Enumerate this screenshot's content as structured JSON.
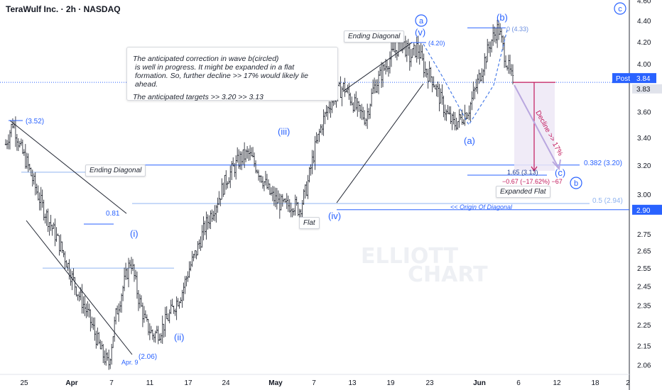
{
  "header": {
    "title": "TeraWulf Inc. · 2h · NASDAQ"
  },
  "note": {
    "line1": "The anticipated correction in wave b(circled)",
    "line2": "is well in progress. It might be expanded in a flat",
    "line3": "formation. So, further decline >> 17% would likely lie ahead.",
    "line4": "The anticipated targets >> 3.20  >>  3.13"
  },
  "watermark": {
    "line1": "ELLIOTT",
    "line2": "CHART"
  },
  "colors": {
    "up": "#26a69a",
    "down": "#ef5350",
    "bar": "#131722",
    "accent": "#2962ff",
    "fib": "#90b4f0",
    "decline": "#c2185b",
    "box": "#ede7f6"
  },
  "chart_data": {
    "type": "ohlc",
    "symbol": "TeraWulf Inc.",
    "interval": "2h",
    "exchange": "NASDAQ",
    "ylim": [
      2.0,
      4.6
    ],
    "y_scale": "log",
    "ytick_labels": [
      "4.60",
      "4.40",
      "4.20",
      "4.00",
      "3.80",
      "3.60",
      "3.40",
      "3.20",
      "3.00",
      "2.90",
      "2.75",
      "2.65",
      "2.55",
      "2.45",
      "2.35",
      "2.25",
      "2.15",
      "2.06"
    ],
    "ytick_values": [
      4.6,
      4.4,
      4.2,
      4.0,
      3.8,
      3.6,
      3.4,
      3.2,
      3.0,
      2.9,
      2.75,
      2.65,
      2.55,
      2.45,
      2.35,
      2.25,
      2.15,
      2.06
    ],
    "x_labels": [
      "25",
      "Apr",
      "7",
      "11",
      "17",
      "24",
      "May",
      "7",
      "13",
      "19",
      "23",
      "Jun",
      "6",
      "12",
      "18",
      "2"
    ],
    "price_tags": [
      {
        "label": "Post",
        "value": "3.84",
        "y": 3.84
      },
      {
        "label": "",
        "value": "3.83",
        "y": 3.83
      },
      {
        "label": "",
        "value": "2.90",
        "y": 2.9
      }
    ],
    "swing_points": [
      {
        "label": "(3.52)",
        "y": 3.52
      },
      {
        "label": "(2.06)",
        "y": 2.06
      },
      {
        "label": "Apr. 9",
        "y": 2.06
      },
      {
        "label": "(4.20)",
        "y": 4.2
      },
      {
        "label": "0 (4.33)",
        "y": 4.33
      },
      {
        "label": "1.65 (3.13)",
        "y": 3.13
      },
      {
        "label": "0.382 (3.20)",
        "y": 3.2
      },
      {
        "label": "0.5 (2.94)",
        "y": 2.94
      },
      {
        "label": "0.81",
        "y": 2.81
      },
      {
        "label": "−0.67 (−17.62%) −67",
        "y": 3.08
      }
    ],
    "wave_labels": [
      "(i)",
      "(ii)",
      "(iii)",
      "(iv)",
      "(v)",
      "(a)",
      "(b)",
      "(c)",
      "a",
      "b",
      "c"
    ],
    "annotations": [
      "Ending Diagonal",
      "Ending Diagonal",
      "Flat",
      "Expanded Flat",
      "<< Origin Of Diagonal",
      "Decline >> 17%"
    ],
    "close_path": [
      3.35,
      3.52,
      3.32,
      3.2,
      3.05,
      2.92,
      2.82,
      2.72,
      2.62,
      2.5,
      2.4,
      2.32,
      2.22,
      2.12,
      2.06,
      2.3,
      2.45,
      2.6,
      2.4,
      2.26,
      2.2,
      2.22,
      2.28,
      2.35,
      2.42,
      2.55,
      2.65,
      2.78,
      2.88,
      2.98,
      3.1,
      3.18,
      3.25,
      3.28,
      3.2,
      3.1,
      3.0,
      2.95,
      2.92,
      2.94,
      2.9,
      3.05,
      3.3,
      3.5,
      3.65,
      3.75,
      3.8,
      3.7,
      3.6,
      3.55,
      3.78,
      3.9,
      4.02,
      4.12,
      4.2,
      4.05,
      4.15,
      3.95,
      3.88,
      3.72,
      3.58,
      3.5,
      3.55,
      3.62,
      3.8,
      4.0,
      4.2,
      4.33,
      4.05,
      3.84
    ]
  }
}
